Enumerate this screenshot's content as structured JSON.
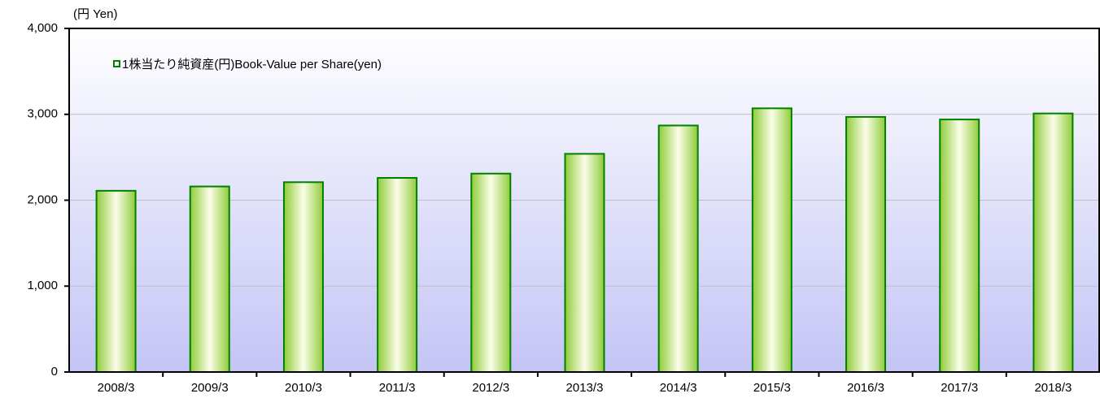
{
  "chart_data": {
    "type": "bar",
    "y_axis_label": "(円 Yen)",
    "categories": [
      "2008/3",
      "2009/3",
      "2010/3",
      "2011/3",
      "2012/3",
      "2013/3",
      "2014/3",
      "2015/3",
      "2016/3",
      "2017/3",
      "2018/3"
    ],
    "series": [
      {
        "name": "1株当たり純資産(円)Book-Value per Share(yen)",
        "color": "#008000",
        "values": [
          2110,
          2160,
          2210,
          2260,
          2310,
          2540,
          2870,
          3070,
          2970,
          2940,
          3010
        ]
      }
    ],
    "ylim": [
      0,
      4000
    ],
    "yticks": [
      0,
      {
        "value": 1000,
        "label": "1,000"
      },
      {
        "value": 2000,
        "label": "2,000"
      },
      {
        "value": 3000,
        "label": "3,000"
      },
      {
        "value": 4000,
        "label": "4,000"
      }
    ],
    "grid": true,
    "legend": "top-left"
  }
}
